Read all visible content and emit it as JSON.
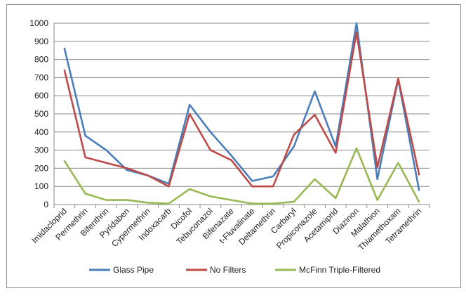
{
  "chart_data": {
    "type": "line",
    "title": "",
    "xlabel": "",
    "ylabel": "",
    "ylim": [
      0,
      1000
    ],
    "yticks": [
      0,
      100,
      200,
      300,
      400,
      500,
      600,
      700,
      800,
      900,
      1000
    ],
    "grid": "horizontal",
    "legend_position": "bottom",
    "categories": [
      "Imidacloprid",
      "Permethrin",
      "Bifenthrin",
      "Pyridaben",
      "Cypermethrin",
      "Indoxacarb",
      "Dicofol",
      "Tebuconazol",
      "Bifenazate",
      "t-Fluvalinate",
      "Deltamethrin",
      "Carbaryl",
      "Propiconazole",
      "Acetamiprid",
      "Diazinon",
      "Malathion",
      "Thiamethoxam",
      "Tetramethrin"
    ],
    "series": [
      {
        "name": "Glass Pipe",
        "color": "#4a7ebb",
        "values": [
          860,
          380,
          300,
          190,
          160,
          115,
          550,
          400,
          270,
          130,
          155,
          320,
          625,
          320,
          1000,
          140,
          690,
          80
        ]
      },
      {
        "name": "No Filters",
        "color": "#be4b48",
        "values": [
          740,
          260,
          230,
          200,
          160,
          100,
          500,
          300,
          245,
          100,
          100,
          385,
          495,
          285,
          950,
          205,
          695,
          165
        ]
      },
      {
        "name": "McFinn Triple-Filtered",
        "color": "#98b954",
        "values": [
          240,
          60,
          25,
          25,
          10,
          5,
          85,
          45,
          25,
          5,
          5,
          15,
          140,
          35,
          310,
          25,
          230,
          15
        ]
      }
    ]
  }
}
